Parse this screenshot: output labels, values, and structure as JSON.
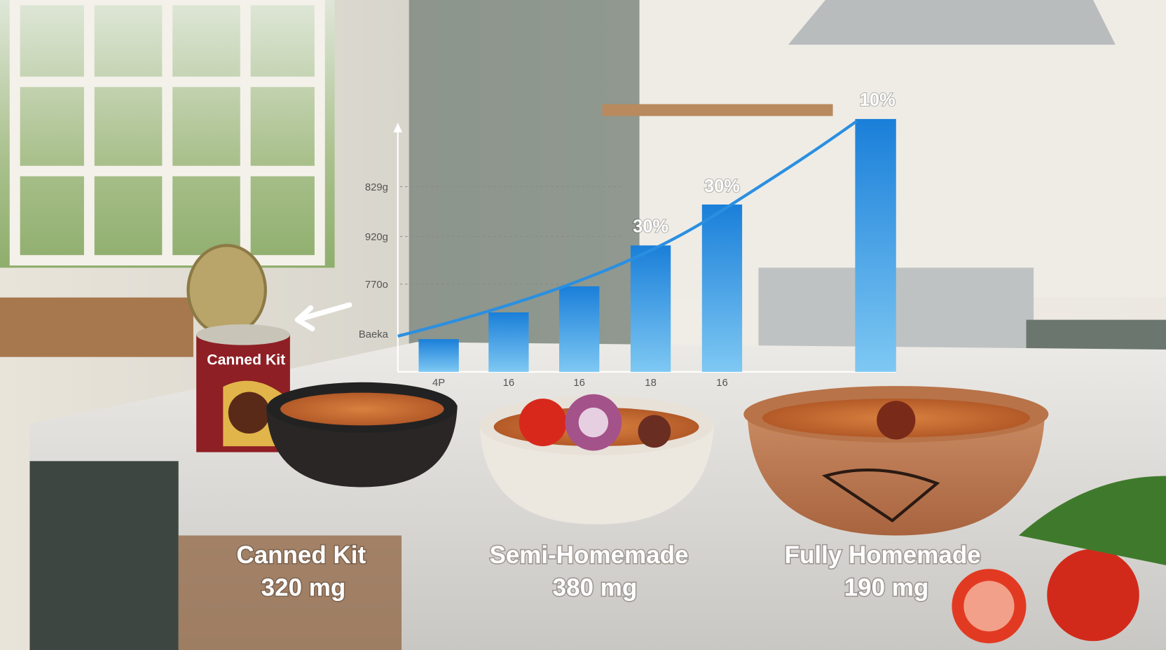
{
  "scene": {
    "can_label": "Canned Kit",
    "chart": {
      "y_labels": [
        "829g",
        "920g",
        "770o",
        "Baeka"
      ],
      "x_labels": [
        "4P",
        "16",
        "16",
        "18",
        "16"
      ],
      "bar_labels": [
        "30%",
        "30%",
        "10%"
      ]
    },
    "captions": [
      {
        "name": "Canned Kit",
        "value": "320 mg"
      },
      {
        "name": "Semi-Homemade",
        "value": "380 mg"
      },
      {
        "name": "Fully Homemade",
        "value": "190 mg"
      }
    ]
  }
}
